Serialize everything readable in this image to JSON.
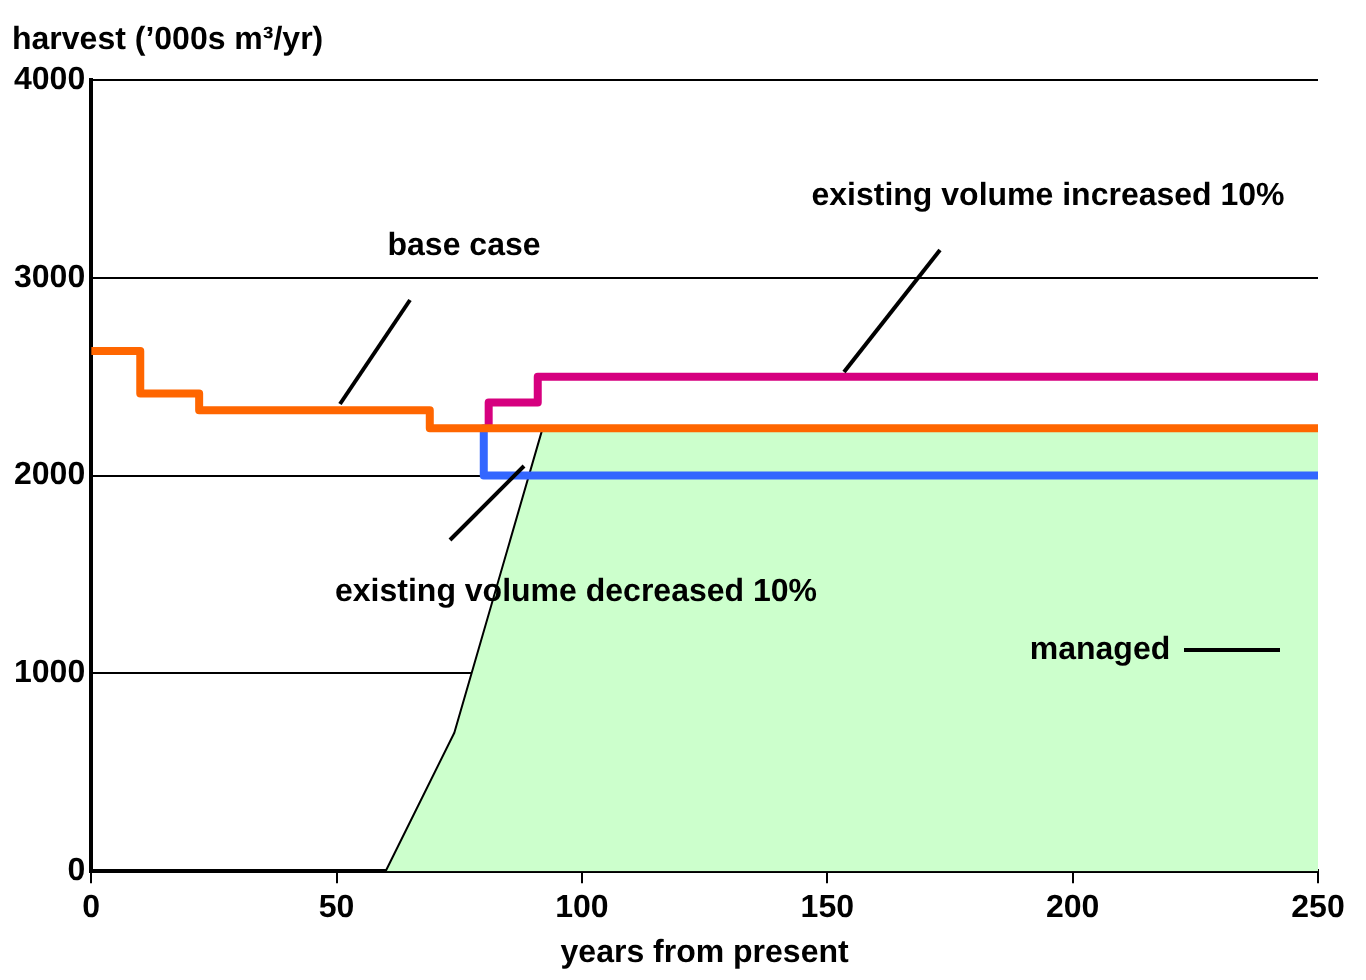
{
  "chart_data": {
    "type": "line",
    "xlabel": "years from present",
    "ylabel": "harvest (’000s m³/yr)",
    "xlim": [
      0,
      250
    ],
    "xticks": [
      0,
      50,
      100,
      150,
      200,
      250
    ],
    "ylim": [
      0,
      4000
    ],
    "yticks": [
      0,
      1000,
      2000,
      3000,
      4000
    ],
    "grid": "y",
    "marker": "none",
    "series": [
      {
        "name": "managed",
        "type": "area",
        "color": "#ccffcc",
        "x": [
          60,
          74,
          92,
          250
        ],
        "values": [
          0,
          700,
          2240,
          2240
        ]
      },
      {
        "name": "existing volume decreased 10%",
        "color": "#3366ff",
        "x": [
          80,
          80,
          250
        ],
        "values": [
          2240,
          2000,
          2000
        ]
      },
      {
        "name": "existing volume increased 10%",
        "color": "#d6007f",
        "x": [
          81,
          81,
          91,
          91,
          250
        ],
        "values": [
          2240,
          2370,
          2370,
          2500,
          2500
        ]
      },
      {
        "name": "base case",
        "color": "#ff6600",
        "x": [
          0,
          10,
          10,
          22,
          22,
          69,
          69,
          250
        ],
        "values": [
          2630,
          2630,
          2415,
          2415,
          2330,
          2330,
          2240,
          2240
        ]
      }
    ]
  }
}
